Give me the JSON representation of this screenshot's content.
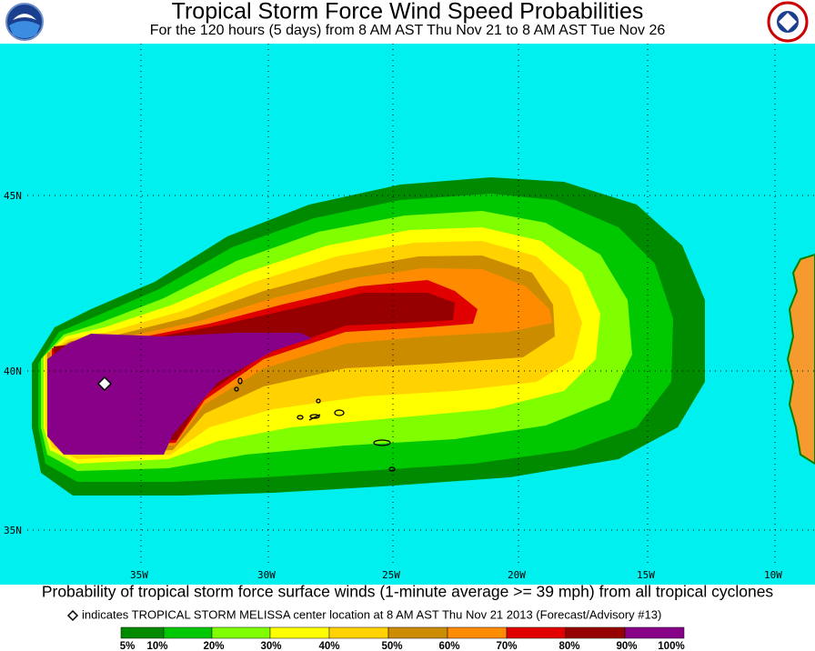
{
  "header": {
    "title": "Tropical Storm Force Wind Speed Probabilities",
    "subtitle": "For the 120 hours (5 days) from 8 AM AST Thu Nov 21 to 8 AM AST Tue Nov 26"
  },
  "map": {
    "latitude_labels": [
      "45N",
      "40N",
      "35N"
    ],
    "longitude_labels": [
      "35W",
      "30W",
      "25W",
      "20W",
      "15W",
      "10W"
    ]
  },
  "footer": {
    "caption": "Probability of tropical storm force surface winds (1-minute average >= 39 mph) from all tropical cyclones",
    "note": "indicates TROPICAL STORM MELISSA center location at 8 AM AST Thu Nov 21 2013 (Forecast/Advisory #13)",
    "legend_labels": [
      "5%",
      "10%",
      "20%",
      "30%",
      "40%",
      "50%",
      "60%",
      "70%",
      "80%",
      "90%",
      "100%"
    ]
  }
}
